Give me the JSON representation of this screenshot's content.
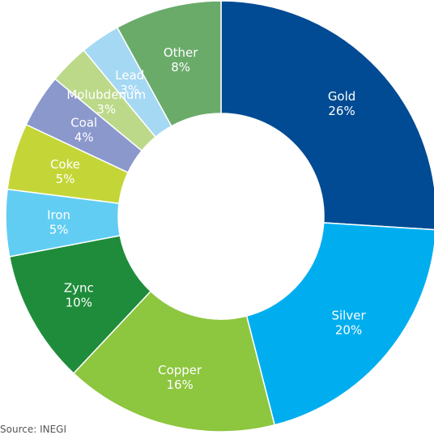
{
  "chart_data": {
    "type": "pie",
    "donut": true,
    "slices": [
      {
        "label": "Gold",
        "pct_text": "26%",
        "value": 26,
        "color": "#004b93"
      },
      {
        "label": "Silver",
        "pct_text": "20%",
        "value": 20,
        "color": "#00aeef"
      },
      {
        "label": "Copper",
        "pct_text": "16%",
        "value": 16,
        "color": "#8dc63f"
      },
      {
        "label": "Zync",
        "pct_text": "10%",
        "value": 10,
        "color": "#1f8c3b"
      },
      {
        "label": "Iron",
        "pct_text": "5%",
        "value": 5,
        "color": "#62cdf3"
      },
      {
        "label": "Coke",
        "pct_text": "5%",
        "value": 5,
        "color": "#c4d637"
      },
      {
        "label": "Coal",
        "pct_text": "4%",
        "value": 4,
        "color": "#8b98cc"
      },
      {
        "label": "Molubdenum",
        "pct_text": "3%",
        "value": 3,
        "color": "#bcd989"
      },
      {
        "label": "Lead",
        "pct_text": "3%",
        "value": 3,
        "color": "#a5d8f3"
      },
      {
        "label": "Other",
        "pct_text": "8%",
        "value": 8,
        "color": "#6aab6a"
      }
    ]
  },
  "source": "Source: INEGI"
}
